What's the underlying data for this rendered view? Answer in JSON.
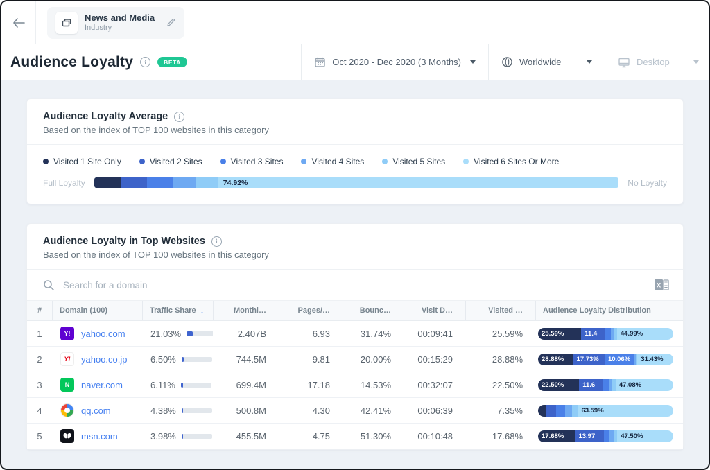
{
  "topbar": {
    "chip": {
      "title": "News and Media",
      "subtitle": "Industry"
    }
  },
  "header": {
    "title": "Audience Loyalty",
    "beta_label": "BETA",
    "date_filter": "Oct 2020 - Dec 2020 (3 Months)",
    "country_filter": "Worldwide",
    "device_filter": "Desktop"
  },
  "colors": {
    "palette": [
      "#233258",
      "#3d63c9",
      "#4a80e8",
      "#6ea9f2",
      "#8fccf7",
      "#a9ddfa"
    ],
    "accent_blue": "#3e7de8",
    "beta_green": "#1fc794",
    "link_blue": "#447ff0"
  },
  "average_card": {
    "title": "Audience Loyalty Average",
    "subtitle": "Based on the index of TOP 100 websites in this category",
    "legend": [
      "Visited 1 Site Only",
      "Visited 2 Sites",
      "Visited 3 Sites",
      "Visited 4 Sites",
      "Visited 5 Sites",
      "Visited 6 Sites Or More"
    ],
    "bar_left_label": "Full Loyalty",
    "bar_right_label": "No Loyalty",
    "segments": [
      {
        "value": 5.5,
        "label": ""
      },
      {
        "value": 5.2,
        "label": ""
      },
      {
        "value": 5.2,
        "label": ""
      },
      {
        "value": 4.7,
        "label": ""
      },
      {
        "value": 4.48,
        "label": ""
      },
      {
        "value": 74.92,
        "label": "74.92%"
      }
    ]
  },
  "table_card": {
    "title": "Audience Loyalty in Top Websites",
    "subtitle": "Based on the index of TOP 100 websites in this category",
    "search_placeholder": "Search for a domain",
    "excel_icon": "excel-export-icon",
    "columns": [
      "#",
      "Domain (100)",
      "Traffic Share",
      "Monthl…",
      "Pages/…",
      "Bounc…",
      "Visit D…",
      "Visited …",
      "Audience Loyalty Distribution"
    ],
    "sorted_column": "Traffic Share",
    "rows": [
      {
        "rank": "1",
        "domain": "yahoo.com",
        "favicon": {
          "name": "yahoo-com-favicon",
          "style": "purple-y",
          "text": "Y!",
          "bg": "#5f01d1",
          "fg": "#ffffff"
        },
        "traffic_share": "21.03%",
        "traffic_value": 21.03,
        "monthly_visits": "2.407B",
        "pages_per_visit": "6.93",
        "bounce_rate": "31.74%",
        "visit_duration": "00:09:41",
        "visited_one_site": "25.59%",
        "distribution": [
          {
            "value": 25.59,
            "label": "25.59%"
          },
          {
            "value": 11.4,
            "label": "11.4"
          },
          {
            "value": 8.5,
            "label": ""
          },
          {
            "value": 5.5,
            "label": ""
          },
          {
            "value": 4.03,
            "label": ""
          },
          {
            "value": 44.99,
            "label": "44.99%"
          }
        ]
      },
      {
        "rank": "2",
        "domain": "yahoo.co.jp",
        "favicon": {
          "name": "yahoo-co-jp-favicon",
          "style": "red-y",
          "text": "Y7",
          "bg": "#ffffff",
          "fg": "#e60012"
        },
        "traffic_share": "6.50%",
        "traffic_value": 6.5,
        "monthly_visits": "744.5M",
        "pages_per_visit": "9.81",
        "bounce_rate": "20.00%",
        "visit_duration": "00:15:29",
        "visited_one_site": "28.88%",
        "distribution": [
          {
            "value": 28.88,
            "label": "28.88%"
          },
          {
            "value": 17.73,
            "label": "17.73%"
          },
          {
            "value": 10.06,
            "label": "10.06%"
          },
          {
            "value": 6.5,
            "label": ""
          },
          {
            "value": 5.4,
            "label": ""
          },
          {
            "value": 31.43,
            "label": "31.43%"
          }
        ]
      },
      {
        "rank": "3",
        "domain": "naver.com",
        "favicon": {
          "name": "naver-com-favicon",
          "style": "green-n",
          "text": "N",
          "bg": "#03c75a",
          "fg": "#ffffff"
        },
        "traffic_share": "6.11%",
        "traffic_value": 6.11,
        "monthly_visits": "699.4M",
        "pages_per_visit": "17.18",
        "bounce_rate": "14.53%",
        "visit_duration": "00:32:07",
        "visited_one_site": "22.50%",
        "distribution": [
          {
            "value": 22.5,
            "label": "22.50%"
          },
          {
            "value": 11.6,
            "label": "11.6"
          },
          {
            "value": 8.3,
            "label": ""
          },
          {
            "value": 6.0,
            "label": ""
          },
          {
            "value": 4.52,
            "label": ""
          },
          {
            "value": 47.08,
            "label": "47.08%"
          }
        ]
      },
      {
        "rank": "4",
        "domain": "qq.com",
        "favicon": {
          "name": "qq-com-favicon",
          "style": "qq-swirl",
          "text": "",
          "bg": "#ffffff",
          "fg": "#ffffff"
        },
        "traffic_share": "4.38%",
        "traffic_value": 4.38,
        "monthly_visits": "500.8M",
        "pages_per_visit": "4.30",
        "bounce_rate": "42.41%",
        "visit_duration": "00:06:39",
        "visited_one_site": "7.35%",
        "distribution": [
          {
            "value": 7.35,
            "label": ""
          },
          {
            "value": 9.0,
            "label": ""
          },
          {
            "value": 8.5,
            "label": ""
          },
          {
            "value": 6.5,
            "label": ""
          },
          {
            "value": 5.06,
            "label": ""
          },
          {
            "value": 63.59,
            "label": "63.59%"
          }
        ]
      },
      {
        "rank": "5",
        "domain": "msn.com",
        "favicon": {
          "name": "msn-com-favicon",
          "style": "msn-butterfly",
          "text": "",
          "bg": "#10131a",
          "fg": "#ffffff"
        },
        "traffic_share": "3.98%",
        "traffic_value": 3.98,
        "monthly_visits": "455.5M",
        "pages_per_visit": "4.75",
        "bounce_rate": "51.30%",
        "visit_duration": "00:10:48",
        "visited_one_site": "17.68%",
        "distribution": [
          {
            "value": 17.68,
            "label": "17.68%"
          },
          {
            "value": 13.97,
            "label": "13.97"
          },
          {
            "value": 8.0,
            "label": ""
          },
          {
            "value": 7.0,
            "label": ""
          },
          {
            "value": 5.85,
            "label": ""
          },
          {
            "value": 47.5,
            "label": "47.50%"
          }
        ]
      }
    ]
  }
}
